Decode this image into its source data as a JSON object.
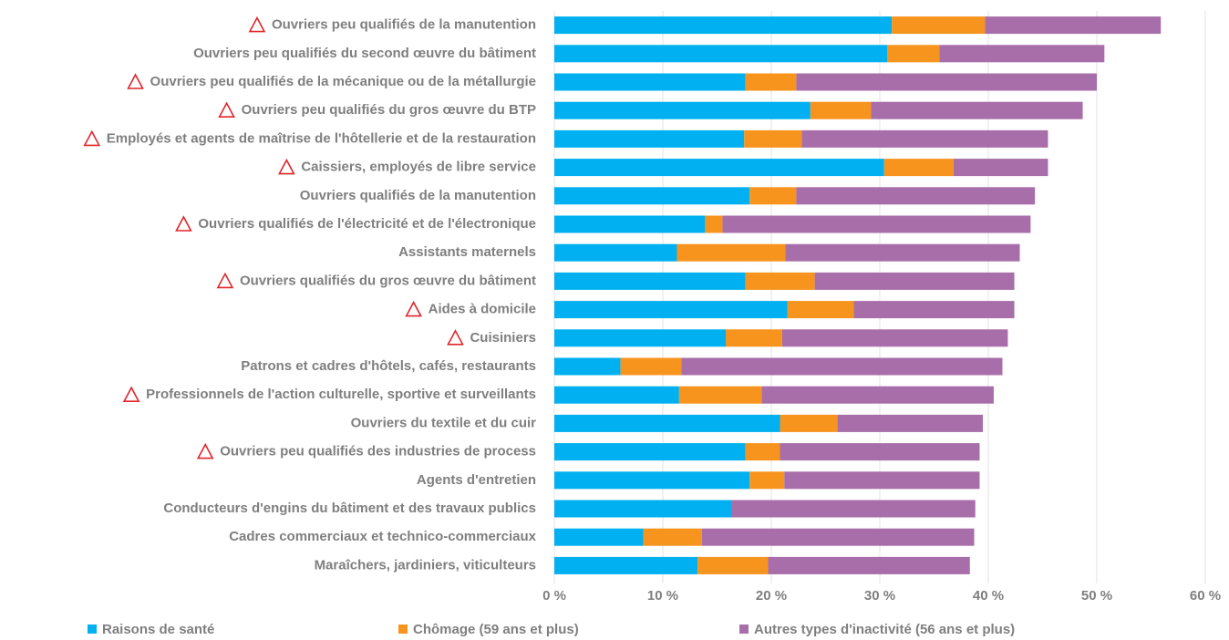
{
  "chart_data": {
    "type": "stacked_bar_horizontal",
    "categories": [
      "Ouvriers peu qualifiés de la manutention",
      "Ouvriers peu qualifiés du second œuvre du bâtiment",
      "Ouvriers peu qualifiés de la mécanique ou de la métallurgie",
      "Ouvriers peu qualifiés du gros œuvre du BTP",
      "Employés et agents de maîtrise de l'hôtellerie et de la restauration",
      "Caissiers, employés de libre service",
      "Ouvriers qualifiés de la manutention",
      "Ouvriers qualifiés de l'électricité et de l'électronique",
      "Assistants maternels",
      "Ouvriers qualifiés du gros œuvre du bâtiment",
      "Aides à domicile",
      "Cuisiniers",
      "Patrons et cadres d'hôtels, cafés, restaurants",
      "Professionnels de l'action culturelle, sportive et surveillants",
      "Ouvriers du textile et du cuir",
      "Ouvriers peu qualifiés des industries de process",
      "Agents d'entretien",
      "Conducteurs d'engins du bâtiment et des travaux publics",
      "Cadres commerciaux et technico-commerciaux",
      "Maraîchers, jardiniers, viticulteurs"
    ],
    "warning_flags": [
      true,
      false,
      true,
      true,
      true,
      true,
      false,
      true,
      false,
      true,
      true,
      true,
      false,
      true,
      false,
      true,
      false,
      false,
      false,
      false
    ],
    "series": [
      {
        "name": "Raisons de santé",
        "color": "#00b0f0",
        "values": [
          31.1,
          30.7,
          17.6,
          23.6,
          17.5,
          30.4,
          18.0,
          13.9,
          11.3,
          17.6,
          21.5,
          15.8,
          6.1,
          11.5,
          20.8,
          17.6,
          18.0,
          16.3,
          8.2,
          13.2
        ]
      },
      {
        "name": "Chômage (59 ans et plus)",
        "color": "#f7941d",
        "values": [
          8.6,
          4.8,
          4.7,
          5.6,
          5.3,
          6.4,
          4.3,
          1.6,
          10.0,
          6.4,
          6.1,
          5.2,
          5.6,
          7.6,
          5.3,
          3.2,
          3.2,
          0,
          5.4,
          6.5
        ]
      },
      {
        "name": "Autres types d'inactivité (56 ans et plus)",
        "color": "#a86ea9",
        "values": [
          16.2,
          15.2,
          27.7,
          19.5,
          22.7,
          8.7,
          22.0,
          28.4,
          21.6,
          18.4,
          14.8,
          20.8,
          29.6,
          21.4,
          13.4,
          18.4,
          18.0,
          22.5,
          25.1,
          18.6
        ]
      }
    ],
    "xlim": [
      0,
      60
    ],
    "xticks": [
      {
        "value": 0,
        "label": "0 %"
      },
      {
        "value": 10,
        "label": "10 %"
      },
      {
        "value": 20,
        "label": "20 %"
      },
      {
        "value": 30,
        "label": "30 %"
      },
      {
        "value": 40,
        "label": "40 %"
      },
      {
        "value": 50,
        "label": "50 %"
      },
      {
        "value": 60,
        "label": "60 %"
      }
    ],
    "grid": true,
    "legend": "bottom"
  }
}
